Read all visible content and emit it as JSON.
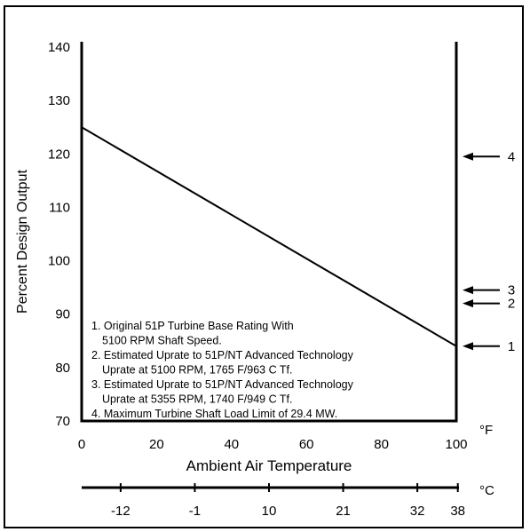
{
  "chart_data": {
    "type": "line",
    "xlabel": "Ambient Air Temperature",
    "ylabel": "Percent Design Output",
    "xlim": [
      0,
      100
    ],
    "ylim": [
      70,
      140
    ],
    "x_unit_label": "°F",
    "x_ticks": [
      "0",
      "20",
      "40",
      "60",
      "80",
      "100"
    ],
    "y_ticks": [
      "70",
      "80",
      "90",
      "100",
      "110",
      "120",
      "130",
      "140"
    ],
    "celsius_axis": {
      "unit_label": "°C",
      "ticks": [
        {
          "label": "-12",
          "f": 10.4
        },
        {
          "label": "-1",
          "f": 30.2
        },
        {
          "label": "10",
          "f": 50
        },
        {
          "label": "21",
          "f": 69.8
        },
        {
          "label": "32",
          "f": 89.6
        },
        {
          "label": "38",
          "f": 100.4
        }
      ]
    },
    "series": [
      {
        "x": [
          0,
          100
        ],
        "y": [
          125,
          84
        ]
      }
    ],
    "markers": [
      {
        "label": "4",
        "value": 119.5
      },
      {
        "label": "3",
        "value": 94.5
      },
      {
        "label": "2",
        "value": 92
      },
      {
        "label": "1",
        "value": 84
      }
    ],
    "notes": [
      "1. Original 51P Turbine Base Rating With",
      "5100 RPM Shaft Speed.",
      "2. Estimated Uprate to 51P/NT Advanced Technology",
      "Uprate at 5100 RPM, 1765 F/963 C Tf.",
      "3. Estimated Uprate to 51P/NT Advanced Technology",
      "Uprate at 5355 RPM, 1740 F/949 C Tf.",
      "4. Maximum Turbine Shaft Load Limit of 29.4 MW."
    ],
    "grid": false,
    "legend": "none"
  }
}
